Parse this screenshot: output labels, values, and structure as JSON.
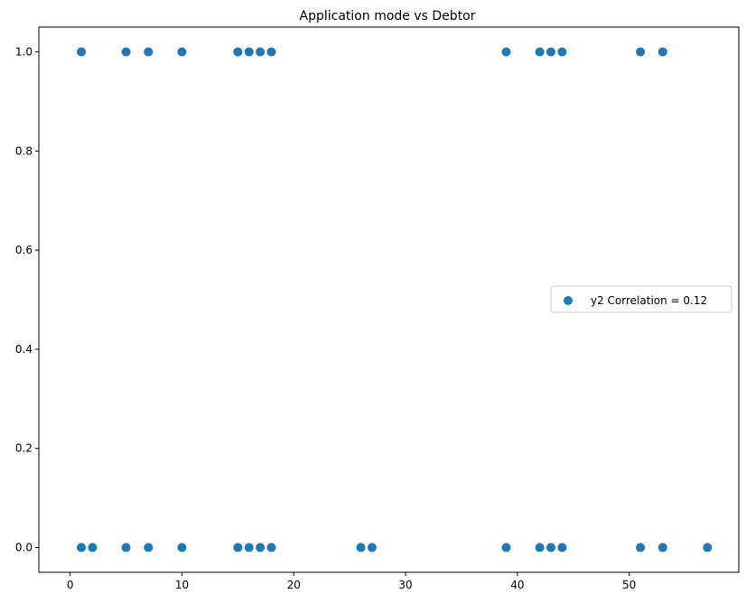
{
  "chart_data": {
    "type": "scatter",
    "title": "Application mode vs Debtor",
    "xlabel": "",
    "ylabel": "",
    "xlim": [
      -2.8,
      59.8
    ],
    "ylim": [
      -0.05,
      1.05
    ],
    "x_ticks": [
      0,
      10,
      20,
      30,
      40,
      50
    ],
    "x_tick_labels": [
      "0",
      "10",
      "20",
      "30",
      "40",
      "50"
    ],
    "y_ticks": [
      0.0,
      0.2,
      0.4,
      0.6,
      0.8,
      1.0
    ],
    "y_tick_labels": [
      "0.0",
      "0.2",
      "0.4",
      "0.6",
      "0.8",
      "1.0"
    ],
    "grid": false,
    "legend_position": "center-right",
    "series": [
      {
        "name": "y2 Correlation = 0.12",
        "color": "#1f77b4",
        "points": [
          [
            1,
            1
          ],
          [
            5,
            1
          ],
          [
            7,
            1
          ],
          [
            10,
            1
          ],
          [
            15,
            1
          ],
          [
            16,
            1
          ],
          [
            17,
            1
          ],
          [
            18,
            1
          ],
          [
            39,
            1
          ],
          [
            42,
            1
          ],
          [
            43,
            1
          ],
          [
            44,
            1
          ],
          [
            51,
            1
          ],
          [
            53,
            1
          ],
          [
            1,
            0
          ],
          [
            2,
            0
          ],
          [
            5,
            0
          ],
          [
            7,
            0
          ],
          [
            10,
            0
          ],
          [
            15,
            0
          ],
          [
            16,
            0
          ],
          [
            17,
            0
          ],
          [
            18,
            0
          ],
          [
            26,
            0
          ],
          [
            27,
            0
          ],
          [
            39,
            0
          ],
          [
            42,
            0
          ],
          [
            43,
            0
          ],
          [
            44,
            0
          ],
          [
            51,
            0
          ],
          [
            53,
            0
          ],
          [
            57,
            0
          ]
        ]
      }
    ]
  }
}
